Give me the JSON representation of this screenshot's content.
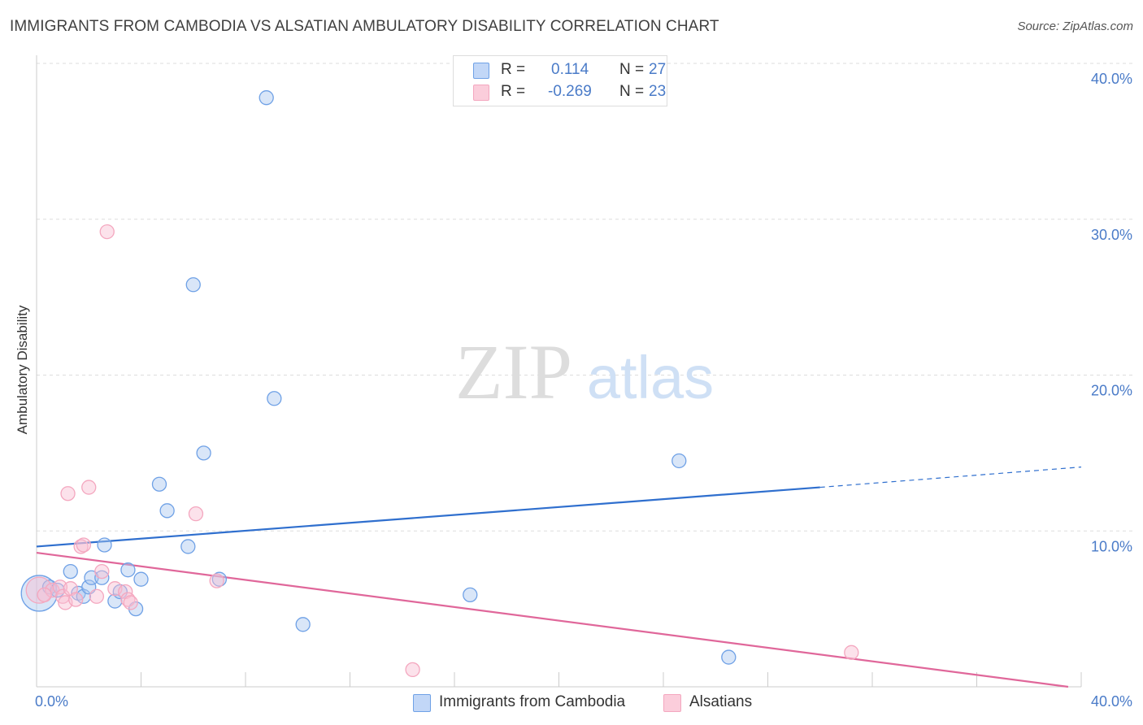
{
  "title": "IMMIGRANTS FROM CAMBODIA VS ALSATIAN AMBULATORY DISABILITY CORRELATION CHART",
  "source": "Source: ZipAtlas.com",
  "watermark": {
    "zip": "ZIP",
    "atlas": "atlas"
  },
  "chart_data": {
    "type": "scatter",
    "xlabel": "",
    "ylabel": "Ambulatory Disability",
    "xlim": [
      0,
      40
    ],
    "ylim": [
      0,
      40
    ],
    "x_tick_labels": [
      "0.0%",
      "40.0%"
    ],
    "y_ticks": [
      10,
      20,
      30,
      40
    ],
    "y_tick_labels": [
      "10.0%",
      "20.0%",
      "30.0%",
      "40.0%"
    ],
    "grid": true,
    "legend_placement": "bottom-center",
    "series": [
      {
        "name": "Immigrants from Cambodia",
        "color": "#6fa1e6",
        "line_color": "#2f6fce",
        "stats": {
          "r_label": "R =",
          "r": "0.114",
          "n_label": "N =",
          "n": "27"
        },
        "trend": {
          "x0": 0,
          "y0": 9.0,
          "x1": 30,
          "y1": 12.8,
          "dash_x1": 40,
          "dash_y1": 14.1
        },
        "points": [
          {
            "x": 0.1,
            "y": 6.0,
            "r": 22
          },
          {
            "x": 0.5,
            "y": 6.4
          },
          {
            "x": 0.8,
            "y": 6.2
          },
          {
            "x": 1.3,
            "y": 7.4
          },
          {
            "x": 1.6,
            "y": 6.0
          },
          {
            "x": 1.8,
            "y": 5.8
          },
          {
            "x": 2.0,
            "y": 6.4
          },
          {
            "x": 2.1,
            "y": 7.0
          },
          {
            "x": 2.5,
            "y": 7.0
          },
          {
            "x": 2.6,
            "y": 9.1
          },
          {
            "x": 3.0,
            "y": 5.5
          },
          {
            "x": 3.2,
            "y": 6.1
          },
          {
            "x": 3.5,
            "y": 7.5
          },
          {
            "x": 3.8,
            "y": 5.0
          },
          {
            "x": 4.0,
            "y": 6.9
          },
          {
            "x": 4.7,
            "y": 13.0
          },
          {
            "x": 5.0,
            "y": 11.3
          },
          {
            "x": 5.8,
            "y": 9.0
          },
          {
            "x": 6.0,
            "y": 25.8
          },
          {
            "x": 6.4,
            "y": 15.0
          },
          {
            "x": 7.0,
            "y": 6.9
          },
          {
            "x": 8.8,
            "y": 37.8
          },
          {
            "x": 9.1,
            "y": 18.5
          },
          {
            "x": 10.2,
            "y": 4.0
          },
          {
            "x": 16.6,
            "y": 5.9
          },
          {
            "x": 24.6,
            "y": 14.5
          },
          {
            "x": 26.5,
            "y": 1.9
          }
        ]
      },
      {
        "name": "Alsatians",
        "color": "#f4a7bf",
        "line_color": "#e0679a",
        "stats": {
          "r_label": "R =",
          "r": "-0.269",
          "n_label": "N =",
          "n": "23"
        },
        "trend": {
          "x0": 0,
          "y0": 8.6,
          "x1": 39.5,
          "y1": 0.0
        },
        "points": [
          {
            "x": 0.1,
            "y": 6.2,
            "r": 16
          },
          {
            "x": 0.6,
            "y": 6.2
          },
          {
            "x": 0.9,
            "y": 6.4
          },
          {
            "x": 1.0,
            "y": 5.8
          },
          {
            "x": 1.1,
            "y": 5.4
          },
          {
            "x": 1.3,
            "y": 6.3
          },
          {
            "x": 1.2,
            "y": 12.4
          },
          {
            "x": 1.5,
            "y": 5.6
          },
          {
            "x": 1.7,
            "y": 9.0
          },
          {
            "x": 1.8,
            "y": 9.1
          },
          {
            "x": 2.0,
            "y": 12.8
          },
          {
            "x": 2.3,
            "y": 5.8
          },
          {
            "x": 2.5,
            "y": 7.4
          },
          {
            "x": 2.7,
            "y": 29.2
          },
          {
            "x": 3.0,
            "y": 6.3
          },
          {
            "x": 3.4,
            "y": 6.1
          },
          {
            "x": 3.5,
            "y": 5.6
          },
          {
            "x": 3.6,
            "y": 5.4
          },
          {
            "x": 6.1,
            "y": 11.1
          },
          {
            "x": 6.9,
            "y": 6.8
          },
          {
            "x": 14.4,
            "y": 1.1
          },
          {
            "x": 31.2,
            "y": 2.2
          },
          {
            "x": 0.3,
            "y": 5.9
          }
        ]
      }
    ]
  }
}
